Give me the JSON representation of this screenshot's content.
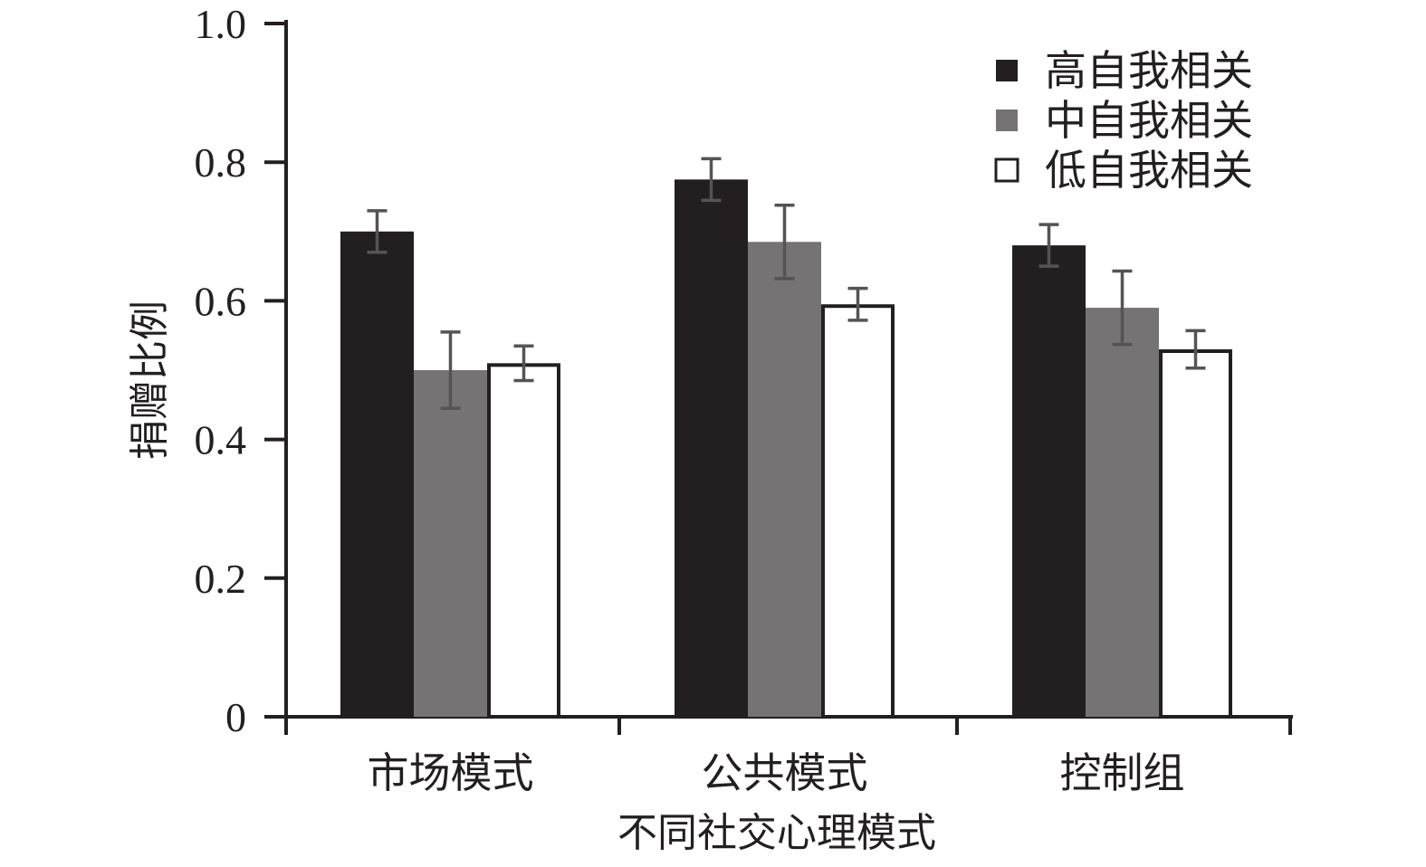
{
  "chart_data": {
    "type": "bar",
    "title": "",
    "xlabel": "不同社交心理模式",
    "ylabel": "捐赠比例",
    "ylim": [
      0,
      1.0
    ],
    "yticks": [
      0,
      0.2,
      0.4,
      0.6,
      0.8,
      1.0
    ],
    "ytick_labels": [
      "0",
      "0.2",
      "0.4",
      "0.6",
      "0.8",
      "1.0"
    ],
    "categories": [
      "市场模式",
      "公共模式",
      "控制组"
    ],
    "series": [
      {
        "name": "高自我相关",
        "color": "#231f20",
        "values": [
          0.7,
          0.775,
          0.68
        ],
        "errors": [
          0.03,
          0.03,
          0.03
        ]
      },
      {
        "name": "中自我相关",
        "color": "#757374",
        "values": [
          0.5,
          0.685,
          0.59
        ],
        "errors": [
          0.055,
          0.053,
          0.053
        ]
      },
      {
        "name": "低自我相关",
        "color": "#ffffff",
        "values": [
          0.51,
          0.595,
          0.53
        ],
        "errors": [
          0.025,
          0.023,
          0.027
        ]
      }
    ],
    "legend_position": "top-right",
    "grid": false
  }
}
